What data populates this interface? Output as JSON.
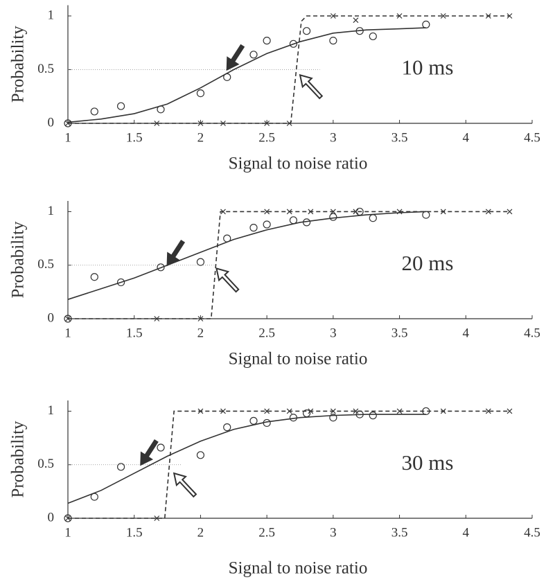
{
  "chart_data": [
    {
      "type": "scatter",
      "ylabel": "Probability",
      "xlabel": "Signal to noise ratio",
      "annotation": "10 ms",
      "xlim": [
        1,
        4.5
      ],
      "ylim": [
        0,
        1.1
      ],
      "xticks": [
        1,
        1.5,
        2,
        2.5,
        3,
        3.5,
        4,
        4.5
      ],
      "yticks": [
        0,
        0.5,
        1
      ],
      "color": "#333333",
      "series": [
        {
          "kind": "points",
          "marker": "circle",
          "x": [
            1,
            1.2,
            1.4,
            1.7,
            2.0,
            2.2,
            2.4,
            2.5,
            2.7,
            2.8,
            3.0,
            3.2,
            3.3,
            3.7
          ],
          "values": [
            0,
            0.11,
            0.16,
            0.13,
            0.28,
            0.43,
            0.64,
            0.77,
            0.74,
            0.86,
            0.77,
            0.86,
            0.81,
            0.92
          ]
        },
        {
          "kind": "line",
          "dash": false,
          "x": [
            1,
            1.25,
            1.5,
            1.75,
            2,
            2.25,
            2.5,
            2.75,
            3,
            3.25,
            3.5,
            3.7
          ],
          "values": [
            0.01,
            0.04,
            0.09,
            0.18,
            0.33,
            0.5,
            0.65,
            0.76,
            0.84,
            0.87,
            0.88,
            0.89
          ]
        },
        {
          "kind": "line",
          "dash": true,
          "x": [
            1,
            2.68,
            2.76,
            2.8,
            4.33
          ],
          "values": [
            0,
            0,
            0.95,
            1,
            1
          ]
        },
        {
          "kind": "points",
          "marker": "cross",
          "x": [
            1,
            1.67,
            2.0,
            2.17,
            2.5,
            2.67,
            3.0,
            3.17,
            3.5,
            3.83,
            4.17,
            4.33
          ],
          "values": [
            0,
            0,
            0,
            0,
            0,
            0,
            1,
            0.96,
            1,
            1,
            1,
            1
          ]
        }
      ],
      "reference_line": {
        "y": 0.5,
        "x": [
          1,
          2.9
        ]
      },
      "arrows": [
        {
          "fill": "solid",
          "x": 2.2,
          "y": 0.5
        },
        {
          "fill": "open",
          "x": 2.75,
          "y": 0.45
        }
      ]
    },
    {
      "type": "scatter",
      "ylabel": "Probability",
      "xlabel": "Signal to noise ratio",
      "annotation": "20 ms",
      "xlim": [
        1,
        4.5
      ],
      "ylim": [
        0,
        1.1
      ],
      "xticks": [
        1,
        1.5,
        2,
        2.5,
        3,
        3.5,
        4,
        4.5
      ],
      "yticks": [
        0,
        0.5,
        1
      ],
      "color": "#333333",
      "series": [
        {
          "kind": "points",
          "marker": "circle",
          "x": [
            1,
            1.2,
            1.4,
            1.7,
            2.0,
            2.2,
            2.4,
            2.5,
            2.7,
            2.8,
            3.0,
            3.2,
            3.3,
            3.7
          ],
          "values": [
            0,
            0.39,
            0.34,
            0.48,
            0.53,
            0.75,
            0.85,
            0.88,
            0.92,
            0.9,
            0.95,
            1.0,
            0.94,
            0.97
          ]
        },
        {
          "kind": "line",
          "dash": false,
          "x": [
            1,
            1.25,
            1.5,
            1.75,
            2,
            2.25,
            2.5,
            2.75,
            3,
            3.25,
            3.5,
            3.7
          ],
          "values": [
            0.18,
            0.28,
            0.38,
            0.5,
            0.62,
            0.74,
            0.83,
            0.9,
            0.94,
            0.97,
            0.99,
            1.0
          ]
        },
        {
          "kind": "line",
          "dash": true,
          "x": [
            1,
            2.08,
            2.15,
            4.33
          ],
          "values": [
            0,
            0,
            1,
            1
          ]
        },
        {
          "kind": "points",
          "marker": "cross",
          "x": [
            1,
            1.67,
            2.0,
            2.17,
            2.5,
            2.67,
            2.83,
            3.0,
            3.17,
            3.5,
            3.83,
            4.17,
            4.33
          ],
          "values": [
            0,
            0,
            0,
            1,
            1,
            1,
            1,
            1,
            1,
            1,
            1,
            1,
            1
          ]
        }
      ],
      "reference_line": {
        "y": 0.5,
        "x": [
          1,
          2.1
        ]
      },
      "arrows": [
        {
          "fill": "solid",
          "x": 1.75,
          "y": 0.5
        },
        {
          "fill": "open",
          "x": 2.12,
          "y": 0.47
        }
      ]
    },
    {
      "type": "scatter",
      "ylabel": "Probability",
      "xlabel": "Signal to noise ratio",
      "annotation": "30 ms",
      "xlim": [
        1,
        4.5
      ],
      "ylim": [
        0,
        1.1
      ],
      "xticks": [
        1,
        1.5,
        2,
        2.5,
        3,
        3.5,
        4,
        4.5
      ],
      "yticks": [
        0,
        0.5,
        1
      ],
      "color": "#333333",
      "series": [
        {
          "kind": "points",
          "marker": "circle",
          "x": [
            1,
            1.2,
            1.4,
            1.7,
            2.0,
            2.2,
            2.4,
            2.5,
            2.7,
            2.8,
            3.0,
            3.2,
            3.3,
            3.7
          ],
          "values": [
            0,
            0.2,
            0.48,
            0.66,
            0.59,
            0.85,
            0.91,
            0.89,
            0.94,
            0.98,
            0.94,
            0.97,
            0.96,
            1.0
          ]
        },
        {
          "kind": "line",
          "dash": false,
          "x": [
            1,
            1.25,
            1.5,
            1.75,
            2,
            2.25,
            2.5,
            2.75,
            3,
            3.25,
            3.5,
            3.7
          ],
          "values": [
            0.14,
            0.26,
            0.42,
            0.58,
            0.72,
            0.83,
            0.9,
            0.94,
            0.96,
            0.97,
            0.97,
            0.97
          ]
        },
        {
          "kind": "line",
          "dash": true,
          "x": [
            1,
            1.73,
            1.8,
            4.33
          ],
          "values": [
            0,
            0,
            1,
            1
          ]
        },
        {
          "kind": "points",
          "marker": "cross",
          "x": [
            1,
            1.67,
            2.0,
            2.17,
            2.5,
            2.67,
            2.83,
            3.0,
            3.17,
            3.5,
            3.83,
            4.17,
            4.33
          ],
          "values": [
            0,
            0,
            1,
            1,
            1,
            1,
            1,
            1,
            1,
            1,
            1,
            1,
            1
          ]
        }
      ],
      "reference_line": {
        "y": 0.5,
        "x": [
          1,
          1.86
        ]
      },
      "arrows": [
        {
          "fill": "solid",
          "x": 1.55,
          "y": 0.5
        },
        {
          "fill": "open",
          "x": 1.8,
          "y": 0.42
        }
      ]
    }
  ]
}
